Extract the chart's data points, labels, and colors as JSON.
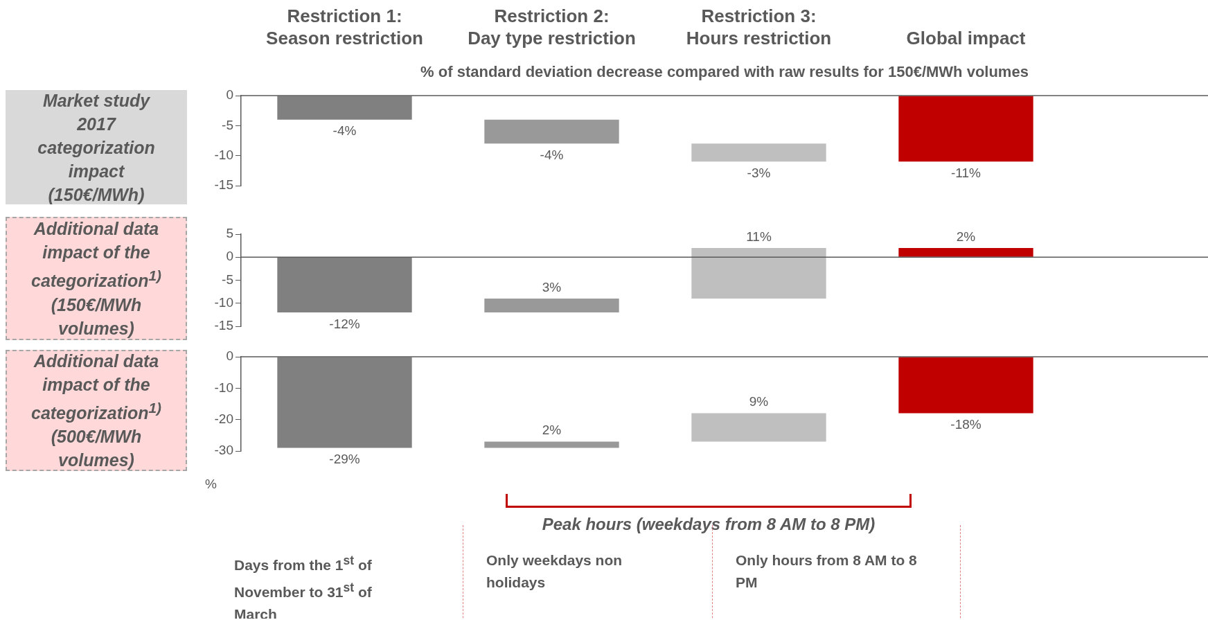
{
  "chart_data": [
    {
      "type": "bar",
      "title": "Market study 2017 categorization impact (150€/MWh)",
      "subtitle": "% of standard deviation decrease compared with raw results for 150€/MWh volumes",
      "categories": [
        "Restriction 1:\nSeason restriction",
        "Restriction 2:\nDay type restriction",
        "Restriction 3:\nHours restriction",
        "Global impact"
      ],
      "base": [
        0,
        -4,
        -8,
        0
      ],
      "values": [
        -4,
        -4,
        -3,
        -11
      ],
      "colors": [
        "#808080",
        "#999999",
        "#bfbfbf",
        "#c00000"
      ],
      "value_labels": [
        "-4%",
        "-4%",
        "-3%",
        "-11%"
      ],
      "ylim": [
        -15,
        0
      ],
      "yticks": [
        0,
        -5,
        -10,
        -15
      ],
      "ref_lines": [
        {
          "axis": "y",
          "value": 0,
          "color": "#595959"
        }
      ]
    },
    {
      "type": "bar",
      "title": "Additional data impact of the categorization$^{1)}$ (150€/MWh volumes)",
      "categories": [
        null,
        null,
        null,
        null
      ],
      "base": [
        0,
        -12,
        -9,
        0
      ],
      "values": [
        -12,
        3,
        11,
        2
      ],
      "colors": [
        "#808080",
        "#999999",
        "#bfbfbf",
        "#c00000"
      ],
      "value_labels": [
        "-12%",
        "3%",
        "11%",
        "2%"
      ],
      "ylim": [
        -15,
        5
      ],
      "yticks": [
        5,
        0,
        -5,
        -10,
        -15
      ],
      "tick_labels": "y",
      "ref_lines": [
        {
          "axis": "y",
          "value": 0,
          "color": "#595959"
        }
      ]
    },
    {
      "type": "bar",
      "title": "Additional data impact of the categorization$^{1)}$ (500€/MWh volumes)",
      "ylabel": "%",
      "categories": [
        null,
        null,
        null,
        null
      ],
      "base": [
        0,
        -29,
        -27,
        0
      ],
      "values": [
        -29,
        2,
        9,
        -18
      ],
      "colors": [
        "#808080",
        "#999999",
        "#bfbfbf",
        "#c00000"
      ],
      "value_labels": [
        "-29%",
        "2%",
        "9%",
        "-18%"
      ],
      "ylim": [
        -30,
        0
      ],
      "yticks": [
        0,
        -10,
        -20,
        -30
      ],
      "tick_labels": "y",
      "ref_lines": [
        {
          "axis": "y",
          "value": 0,
          "color": "#595959"
        }
      ],
      "annotations": [
        "Peak hours (weekdays from 8 AM to 8 PM)",
        "Days from the 1$^{st}$ of November to 31$^{st}$ of March",
        "Only weekdays non holidays",
        "Only hours from 8 AM to 8 PM"
      ]
    }
  ]
}
